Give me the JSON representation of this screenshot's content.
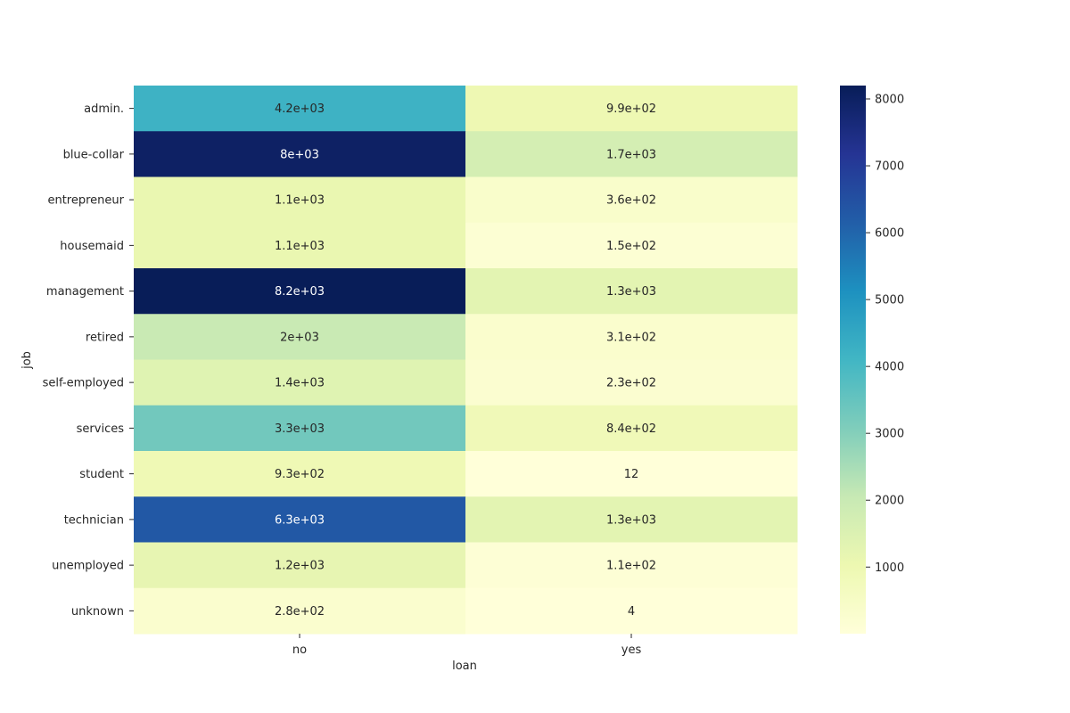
{
  "chart_data": {
    "type": "heatmap",
    "xlabel": "loan",
    "ylabel": "job",
    "columns": [
      "no",
      "yes"
    ],
    "rows": [
      "admin.",
      "blue-collar",
      "entrepreneur",
      "housemaid",
      "management",
      "retired",
      "self-employed",
      "services",
      "student",
      "technician",
      "unemployed",
      "unknown"
    ],
    "values": [
      [
        4200,
        990
      ],
      [
        8000,
        1700
      ],
      [
        1100,
        360
      ],
      [
        1100,
        150
      ],
      [
        8200,
        1300
      ],
      [
        2000,
        310
      ],
      [
        1400,
        230
      ],
      [
        3300,
        840
      ],
      [
        930,
        12
      ],
      [
        6300,
        1300
      ],
      [
        1200,
        110
      ],
      [
        280,
        4
      ]
    ],
    "annotations": [
      [
        "4.2e+03",
        "9.9e+02"
      ],
      [
        "8e+03",
        "1.7e+03"
      ],
      [
        "1.1e+03",
        "3.6e+02"
      ],
      [
        "1.1e+03",
        "1.5e+02"
      ],
      [
        "8.2e+03",
        "1.3e+03"
      ],
      [
        "2e+03",
        "3.1e+02"
      ],
      [
        "1.4e+03",
        "2.3e+02"
      ],
      [
        "3.3e+03",
        "8.4e+02"
      ],
      [
        "9.3e+02",
        "12"
      ],
      [
        "6.3e+03",
        "1.3e+03"
      ],
      [
        "1.2e+03",
        "1.1e+02"
      ],
      [
        "2.8e+02",
        "4"
      ]
    ],
    "colorbar": {
      "range": [
        4,
        8200
      ],
      "ticks": [
        1000,
        2000,
        3000,
        4000,
        5000,
        6000,
        7000,
        8000
      ],
      "tick_labels": [
        "1000",
        "2000",
        "3000",
        "4000",
        "5000",
        "6000",
        "7000",
        "8000"
      ]
    },
    "colormap": "YlGnBu",
    "colormap_stops": [
      "#ffffd9",
      "#edf8b1",
      "#c7e9b4",
      "#7fcdbb",
      "#41b6c4",
      "#1d91c0",
      "#225ea8",
      "#253494",
      "#081d58"
    ]
  }
}
